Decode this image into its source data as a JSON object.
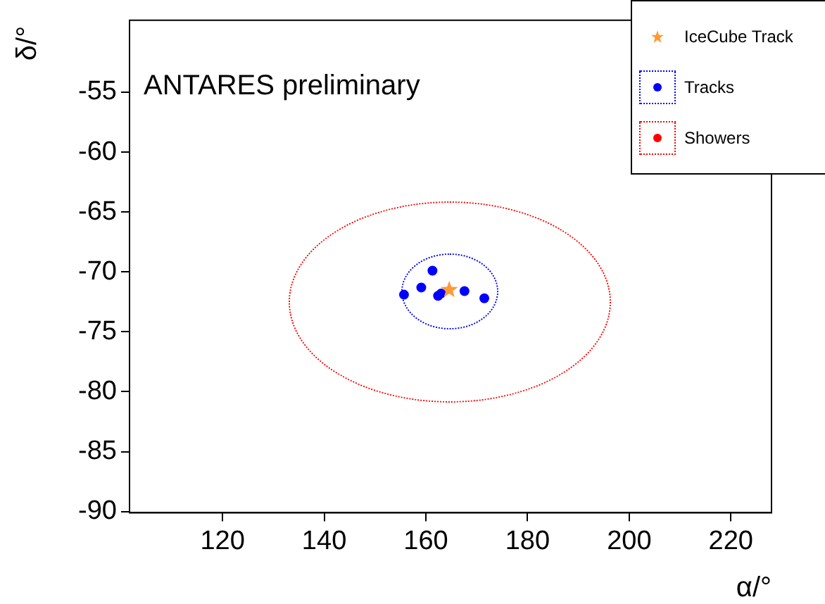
{
  "chart_data": {
    "type": "scatter",
    "xlabel": "α/°",
    "ylabel": "δ/°",
    "annotations": [
      "ANTARES preliminary"
    ],
    "xlim": [
      101.7,
      228
    ],
    "ylim": [
      -90.1,
      -49
    ],
    "xticks": [
      120,
      140,
      160,
      180,
      200,
      220
    ],
    "yticks": [
      -90,
      -85,
      -80,
      -75,
      -70,
      -65,
      -60,
      -55
    ],
    "grid": false,
    "legend": "top right",
    "series": [
      {
        "name": "IceCube Track",
        "type": "scatter",
        "color": "#ff9933",
        "marker": "star",
        "x": [
          164.6
        ],
        "values": [
          -71.5
        ]
      },
      {
        "name": "Tracks",
        "type": "scatter",
        "color": "#0000ff",
        "marker": "circle",
        "x": [
          155.7,
          159.1,
          161.3,
          162.4,
          163.0,
          167.6,
          171.5
        ],
        "values": [
          -71.9,
          -71.3,
          -69.9,
          -72.0,
          -71.8,
          -71.6,
          -72.2
        ]
      },
      {
        "name": "Showers",
        "type": "scatter",
        "color": "#ff0000",
        "marker": "circle"
      }
    ]
  }
}
